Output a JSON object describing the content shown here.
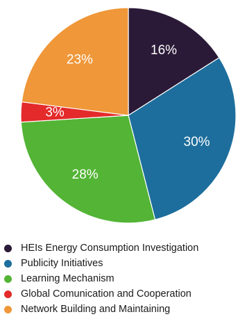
{
  "chart_data": {
    "type": "pie",
    "title": "",
    "slices": [
      {
        "label": "HEIs Energy Consumption Investigation",
        "value": 16,
        "display": "16%",
        "color": "#2b1a37"
      },
      {
        "label": "Publicity Initiatives",
        "value": 30,
        "display": "30%",
        "color": "#1d6e9c"
      },
      {
        "label": "Learning Mechanism",
        "value": 28,
        "display": "28%",
        "color": "#53b435"
      },
      {
        "label": "Global Comunication and Cooperation",
        "value": 3,
        "display": "3%",
        "color": "#e42a2a"
      },
      {
        "label": "Network Building and Maintaining",
        "value": 23,
        "display": "23%",
        "color": "#ef9739"
      }
    ],
    "start_angle_deg": 0,
    "direction": "clockwise",
    "legend": {
      "placement": "bottom",
      "orientation": "vertical"
    }
  }
}
